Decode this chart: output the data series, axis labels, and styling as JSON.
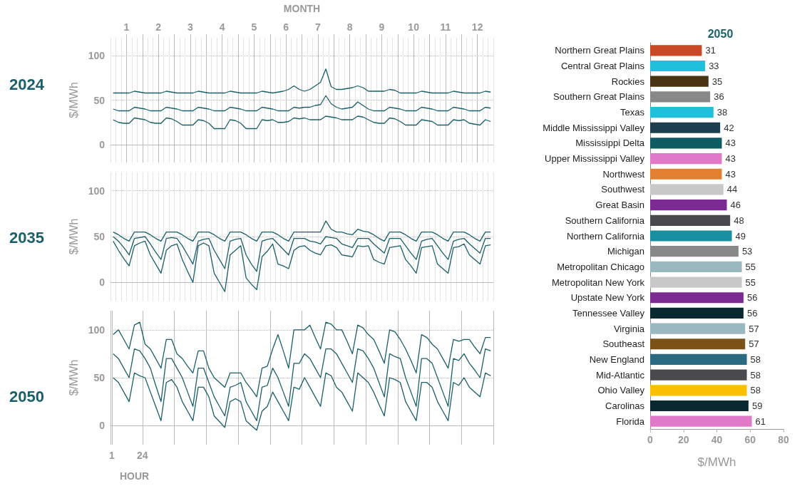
{
  "chart_data": [
    {
      "type": "line",
      "title": "2024",
      "ylabel": "$/MWh",
      "x2label": "MONTH",
      "x2lim": [
        0.5,
        12.5
      ],
      "ylim": [
        -20,
        120
      ],
      "yticks": [
        0,
        50,
        100
      ],
      "grid": true,
      "x2ticks": [
        1,
        {
          "value": 1.5,
          "label": null
        },
        2,
        {
          "value": 2.5,
          "label": null
        },
        3,
        {
          "value": 3.5,
          "label": null
        },
        4,
        {
          "value": 4.5,
          "label": null
        },
        5,
        {
          "value": 5.5,
          "label": null
        },
        6,
        {
          "value": 6.5,
          "label": null
        },
        7,
        {
          "value": 7.5,
          "label": null
        },
        8,
        {
          "value": 8.5,
          "label": null
        },
        9,
        {
          "value": 9.5,
          "label": null
        },
        10,
        {
          "value": 10.5,
          "label": null
        },
        11,
        {
          "value": 11.5,
          "label": null
        },
        12
      ],
      "categories": [
        null,
        null,
        null,
        null,
        null,
        null,
        null,
        null,
        null,
        null,
        null,
        null,
        null,
        null,
        null,
        null,
        null,
        null,
        null,
        null,
        null,
        null,
        null,
        null,
        null,
        null,
        null,
        null,
        null,
        null,
        null,
        null,
        null,
        null,
        null,
        null,
        null,
        null,
        null,
        null,
        null,
        null,
        null,
        null,
        null,
        null,
        null,
        null,
        null,
        null,
        null,
        null,
        null,
        null,
        null,
        null,
        null,
        null,
        null,
        null,
        null,
        null,
        null,
        null,
        null,
        null,
        null,
        null,
        null,
        null,
        null,
        null
      ],
      "series": [
        {
          "color": "#1a5f6a",
          "values": [
            58,
            58,
            58,
            58,
            60,
            59,
            58,
            58,
            58,
            58,
            60,
            59,
            58,
            58,
            58,
            58,
            60,
            59,
            58,
            58,
            58,
            58,
            60,
            59,
            58,
            58,
            58,
            58,
            60,
            59,
            58,
            59,
            60,
            62,
            66,
            62,
            60,
            62,
            66,
            70,
            85,
            65,
            62,
            62,
            63,
            64,
            66,
            64,
            60,
            60,
            60,
            60,
            62,
            61,
            58,
            58,
            58,
            58,
            60,
            59,
            58,
            58,
            58,
            58,
            60,
            59,
            58,
            58,
            58,
            58,
            60,
            59
          ]
        },
        {
          "color": "#1a5f6a",
          "values": [
            40,
            38,
            38,
            38,
            42,
            41,
            40,
            38,
            38,
            38,
            42,
            41,
            40,
            38,
            38,
            38,
            42,
            41,
            40,
            38,
            38,
            38,
            42,
            41,
            40,
            38,
            38,
            38,
            42,
            41,
            40,
            38,
            38,
            38,
            42,
            41,
            42,
            42,
            44,
            45,
            55,
            46,
            42,
            40,
            41,
            42,
            48,
            44,
            40,
            38,
            38,
            38,
            42,
            41,
            40,
            38,
            38,
            38,
            42,
            41,
            40,
            38,
            38,
            38,
            42,
            41,
            40,
            38,
            38,
            38,
            42,
            41
          ]
        },
        {
          "color": "#1a5f6a",
          "values": [
            28,
            25,
            24,
            24,
            30,
            29,
            28,
            25,
            24,
            24,
            30,
            29,
            26,
            22,
            22,
            22,
            28,
            27,
            24,
            18,
            18,
            18,
            28,
            27,
            24,
            18,
            18,
            18,
            28,
            27,
            28,
            25,
            25,
            26,
            30,
            29,
            30,
            28,
            28,
            28,
            32,
            31,
            30,
            28,
            28,
            28,
            32,
            31,
            28,
            25,
            24,
            24,
            30,
            29,
            26,
            22,
            22,
            22,
            28,
            27,
            26,
            22,
            22,
            22,
            28,
            27,
            28,
            24,
            23,
            22,
            28,
            26
          ]
        }
      ]
    },
    {
      "type": "line",
      "title": "2035",
      "ylabel": "$/MWh",
      "ylim": [
        -20,
        120
      ],
      "yticks": [
        0,
        50,
        100
      ],
      "grid": true,
      "categories": [
        null,
        null,
        null,
        null,
        null,
        null,
        null,
        null,
        null,
        null,
        null,
        null,
        null,
        null,
        null,
        null,
        null,
        null,
        null,
        null,
        null,
        null,
        null,
        null,
        null,
        null,
        null,
        null,
        null,
        null,
        null,
        null,
        null,
        null,
        null,
        null,
        null,
        null,
        null,
        null,
        null,
        null,
        null,
        null,
        null,
        null,
        null,
        null,
        null,
        null,
        null,
        null,
        null,
        null,
        null,
        null,
        null,
        null,
        null,
        null,
        null,
        null,
        null,
        null,
        null,
        null,
        null,
        null,
        null,
        null,
        null,
        null
      ],
      "series": [
        {
          "color": "#1a5f6a",
          "values": [
            55,
            52,
            48,
            45,
            55,
            55,
            55,
            52,
            48,
            45,
            55,
            55,
            55,
            52,
            48,
            45,
            55,
            55,
            55,
            52,
            48,
            45,
            55,
            55,
            55,
            52,
            48,
            45,
            55,
            55,
            55,
            52,
            48,
            45,
            55,
            55,
            55,
            55,
            55,
            55,
            67,
            58,
            55,
            55,
            53,
            52,
            58,
            56,
            55,
            52,
            48,
            45,
            55,
            55,
            55,
            52,
            48,
            45,
            55,
            55,
            55,
            52,
            48,
            45,
            55,
            55,
            55,
            52,
            48,
            45,
            55,
            55
          ]
        },
        {
          "color": "#1a5f6a",
          "values": [
            50,
            45,
            38,
            30,
            48,
            49,
            50,
            42,
            33,
            25,
            48,
            49,
            48,
            40,
            30,
            20,
            45,
            47,
            48,
            35,
            25,
            15,
            45,
            47,
            48,
            30,
            20,
            12,
            45,
            47,
            48,
            42,
            36,
            30,
            48,
            48,
            48,
            45,
            44,
            42,
            50,
            49,
            48,
            42,
            40,
            38,
            48,
            48,
            48,
            42,
            37,
            32,
            48,
            48,
            48,
            40,
            32,
            25,
            45,
            47,
            48,
            40,
            32,
            25,
            45,
            47,
            48,
            42,
            37,
            32,
            48,
            48
          ]
        },
        {
          "color": "#1a5f6a",
          "values": [
            45,
            35,
            26,
            18,
            40,
            43,
            45,
            30,
            20,
            10,
            35,
            40,
            42,
            25,
            12,
            0,
            40,
            43,
            40,
            10,
            0,
            -10,
            30,
            35,
            40,
            5,
            -2,
            -8,
            28,
            34,
            42,
            20,
            18,
            15,
            35,
            39,
            40,
            35,
            32,
            30,
            40,
            41,
            38,
            30,
            29,
            28,
            40,
            39,
            40,
            25,
            22,
            20,
            38,
            39,
            40,
            25,
            18,
            10,
            38,
            39,
            40,
            20,
            15,
            10,
            38,
            39,
            42,
            30,
            25,
            20,
            40,
            41
          ]
        }
      ]
    },
    {
      "type": "line",
      "title": "2050",
      "ylabel": "$/MWh",
      "xlabel": "HOUR",
      "xlim": [
        0,
        288
      ],
      "ylim": [
        -20,
        120
      ],
      "yticks": [
        0,
        50,
        100
      ],
      "grid": true,
      "xticks": [
        {
          "value": 0,
          "label": null
        },
        {
          "value": 1,
          "label": "1"
        },
        {
          "value": 24,
          "label": "24"
        },
        {
          "value": 48,
          "label": null
        },
        {
          "value": 72,
          "label": null
        },
        {
          "value": 96,
          "label": null
        },
        {
          "value": 120,
          "label": null
        },
        {
          "value": 144,
          "label": null
        },
        {
          "value": 168,
          "label": null
        },
        {
          "value": 192,
          "label": null
        },
        {
          "value": 216,
          "label": null
        },
        {
          "value": 240,
          "label": null
        },
        {
          "value": 264,
          "label": null
        },
        {
          "value": 288,
          "label": null
        }
      ],
      "x": [
        2,
        6,
        10,
        14,
        18,
        22,
        26,
        30,
        34,
        38,
        42,
        46,
        50,
        54,
        58,
        62,
        66,
        70,
        74,
        78,
        82,
        86,
        90,
        94,
        98,
        102,
        106,
        110,
        114,
        118,
        122,
        126,
        130,
        134,
        138,
        142,
        146,
        150,
        154,
        158,
        162,
        166,
        170,
        174,
        178,
        182,
        186,
        190,
        194,
        198,
        202,
        206,
        210,
        214,
        218,
        222,
        226,
        230,
        234,
        238,
        242,
        246,
        250,
        254,
        258,
        262,
        266,
        270,
        274,
        278,
        282,
        286
      ],
      "series": [
        {
          "color": "#1a5f6a",
          "values": [
            95,
            100,
            90,
            80,
            105,
            108,
            85,
            80,
            70,
            60,
            90,
            90,
            75,
            70,
            62,
            55,
            78,
            78,
            60,
            50,
            45,
            40,
            55,
            55,
            55,
            45,
            38,
            30,
            60,
            62,
            80,
            95,
            78,
            60,
            100,
            100,
            100,
            105,
            92,
            80,
            108,
            106,
            100,
            100,
            88,
            75,
            105,
            102,
            95,
            90,
            78,
            65,
            100,
            98,
            90,
            80,
            68,
            55,
            95,
            92,
            85,
            80,
            70,
            60,
            90,
            88,
            90,
            90,
            82,
            75,
            92,
            92
          ]
        },
        {
          "color": "#1a5f6a",
          "values": [
            75,
            70,
            60,
            50,
            80,
            78,
            70,
            60,
            42,
            25,
            70,
            70,
            60,
            50,
            35,
            20,
            60,
            60,
            45,
            30,
            20,
            10,
            40,
            42,
            45,
            25,
            15,
            5,
            40,
            42,
            60,
            50,
            35,
            20,
            65,
            65,
            75,
            70,
            60,
            50,
            80,
            80,
            75,
            65,
            55,
            45,
            80,
            78,
            70,
            60,
            45,
            30,
            75,
            72,
            70,
            50,
            35,
            20,
            70,
            70,
            65,
            50,
            35,
            20,
            70,
            68,
            75,
            65,
            58,
            50,
            80,
            78
          ]
        },
        {
          "color": "#1a5f6a",
          "values": [
            50,
            45,
            35,
            25,
            55,
            52,
            50,
            35,
            20,
            5,
            45,
            48,
            40,
            25,
            15,
            5,
            40,
            40,
            30,
            10,
            4,
            -2,
            25,
            28,
            25,
            5,
            0,
            -5,
            15,
            20,
            35,
            25,
            15,
            5,
            40,
            38,
            50,
            40,
            30,
            20,
            55,
            52,
            40,
            35,
            25,
            15,
            55,
            50,
            45,
            35,
            22,
            10,
            50,
            48,
            45,
            25,
            15,
            5,
            45,
            45,
            40,
            25,
            15,
            5,
            45,
            42,
            50,
            40,
            35,
            30,
            55,
            52
          ]
        }
      ]
    },
    {
      "type": "bar",
      "orientation": "horizontal",
      "title": "2050",
      "xlabel": "$/MWh",
      "xlim": [
        0,
        80
      ],
      "xticks": [
        0,
        20,
        40,
        60,
        80
      ],
      "data_labels": true,
      "categories": [
        "Northern Great Plains",
        "Central Great Plains",
        "Rockies",
        "Southern Great Plains",
        "Texas",
        "Middle Mississippi Valley",
        "Mississippi Delta",
        "Upper Mississippi Valley",
        "Northwest",
        "Southwest",
        "Great Basin",
        "Southern California",
        "Northern California",
        "Michigan",
        "Metropolitan Chicago",
        "Metropolitan New York",
        "Upstate New York",
        "Tennessee Valley",
        "Virginia",
        "Southeast",
        "New England",
        "Mid-Atlantic",
        "Ohio Valley",
        "Carolinas",
        "Florida"
      ],
      "values": [
        31,
        33,
        35,
        36,
        38,
        42,
        43,
        43,
        43,
        44,
        46,
        48,
        49,
        53,
        55,
        55,
        56,
        56,
        57,
        57,
        58,
        58,
        58,
        59,
        61
      ],
      "colors": [
        "#c94a26",
        "#1fc0dc",
        "#4a3214",
        "#888888",
        "#1fc0dc",
        "#1d3e4e",
        "#0d5c63",
        "#e07ac8",
        "#e08030",
        "#c8c8c8",
        "#7a2a90",
        "#4a4a4e",
        "#1a8fa0",
        "#888888",
        "#9ab8c0",
        "#c8c8c8",
        "#7a2a90",
        "#0a2830",
        "#9ab8c0",
        "#7a5218",
        "#2a6a80",
        "#4a4a4e",
        "#f8c000",
        "#0a2830",
        "#e07ac8"
      ]
    }
  ]
}
